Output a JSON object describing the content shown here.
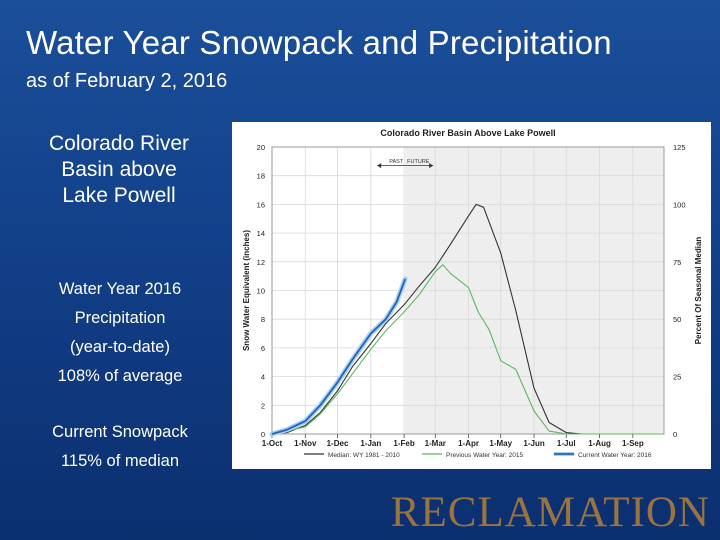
{
  "slide": {
    "title": "Water Year Snowpack and Precipitation",
    "subtitle": "as of February 2, 2016",
    "basin_label": "Colorado River\nBasin above\nLake Powell",
    "precip_text": "Water Year 2016\nPrecipitation\n(year-to-date)\n108% of average",
    "snowpack_text": "Current Snowpack\n115% of median",
    "logo_text": "RECLAMATION"
  },
  "colors": {
    "median": "#333333",
    "previous": "#5cb85c",
    "current": "#2b5fb5",
    "current_glow": "#9fd1f5",
    "future_shade": "#eeeeee",
    "logo": "#9a7440"
  },
  "chart_data": {
    "type": "line",
    "title": "Colorado River Basin Above Lake Powell",
    "ylabel": "Snow Water Equivalent (inches)",
    "y2label": "Percent Of Seasonal Median",
    "ylim": [
      0,
      20
    ],
    "y2lim": [
      0,
      125
    ],
    "yticks": [
      0,
      2,
      4,
      6,
      8,
      10,
      12,
      14,
      16,
      18,
      20
    ],
    "y2ticks": [
      0,
      25,
      50,
      75,
      100,
      125
    ],
    "xlim": [
      "2015-10-01",
      "2016-09-30"
    ],
    "xticks": [
      "1-Oct",
      "1-Nov",
      "1-Dec",
      "1-Jan",
      "1-Feb",
      "1-Mar",
      "1-Apr",
      "1-May",
      "1-Jun",
      "1-Jul",
      "1-Aug",
      "1-Sep"
    ],
    "grid": true,
    "past_label": "PAST",
    "future_label": "FUTURE",
    "current_date": "2016-02-02",
    "legend_position": "bottom",
    "series": [
      {
        "name": "Median: WY 1981 - 2010",
        "key": "median",
        "points": [
          [
            "2015-10-01",
            0
          ],
          [
            "2015-10-15",
            0.1
          ],
          [
            "2015-11-01",
            0.6
          ],
          [
            "2015-11-15",
            1.5
          ],
          [
            "2015-12-01",
            3.0
          ],
          [
            "2015-12-15",
            4.7
          ],
          [
            "2016-01-01",
            6.3
          ],
          [
            "2016-01-15",
            7.7
          ],
          [
            "2016-02-01",
            9.0
          ],
          [
            "2016-02-15",
            10.3
          ],
          [
            "2016-03-01",
            11.6
          ],
          [
            "2016-03-15",
            13.2
          ],
          [
            "2016-04-01",
            15.2
          ],
          [
            "2016-04-08",
            16.0
          ],
          [
            "2016-04-15",
            15.8
          ],
          [
            "2016-05-01",
            12.6
          ],
          [
            "2016-05-15",
            8.6
          ],
          [
            "2016-06-01",
            3.2
          ],
          [
            "2016-06-15",
            0.8
          ],
          [
            "2016-07-01",
            0.1
          ],
          [
            "2016-07-15",
            0
          ],
          [
            "2016-09-30",
            0
          ]
        ]
      },
      {
        "name": "Previous Water Year: 2015",
        "key": "previous",
        "points": [
          [
            "2015-10-01",
            0
          ],
          [
            "2015-10-15",
            0.2
          ],
          [
            "2015-11-01",
            0.5
          ],
          [
            "2015-11-15",
            1.4
          ],
          [
            "2015-12-01",
            2.8
          ],
          [
            "2015-12-15",
            4.2
          ],
          [
            "2016-01-01",
            5.9
          ],
          [
            "2016-01-15",
            7.2
          ],
          [
            "2016-02-01",
            8.5
          ],
          [
            "2016-02-15",
            9.7
          ],
          [
            "2016-03-01",
            11.3
          ],
          [
            "2016-03-08",
            11.8
          ],
          [
            "2016-03-15",
            11.2
          ],
          [
            "2016-04-01",
            10.2
          ],
          [
            "2016-04-10",
            8.5
          ],
          [
            "2016-04-20",
            7.3
          ],
          [
            "2016-05-01",
            5.1
          ],
          [
            "2016-05-15",
            4.5
          ],
          [
            "2016-06-01",
            1.6
          ],
          [
            "2016-06-15",
            0.2
          ],
          [
            "2016-07-01",
            0
          ],
          [
            "2016-09-30",
            0
          ]
        ]
      },
      {
        "name": "Current Water Year: 2016",
        "key": "current",
        "points": [
          [
            "2015-10-01",
            0
          ],
          [
            "2015-10-15",
            0.3
          ],
          [
            "2015-11-01",
            0.9
          ],
          [
            "2015-11-15",
            2.0
          ],
          [
            "2015-12-01",
            3.6
          ],
          [
            "2015-12-15",
            5.2
          ],
          [
            "2016-01-01",
            7.0
          ],
          [
            "2016-01-15",
            8.0
          ],
          [
            "2016-01-25",
            9.2
          ],
          [
            "2016-02-02",
            10.8
          ]
        ]
      }
    ]
  }
}
